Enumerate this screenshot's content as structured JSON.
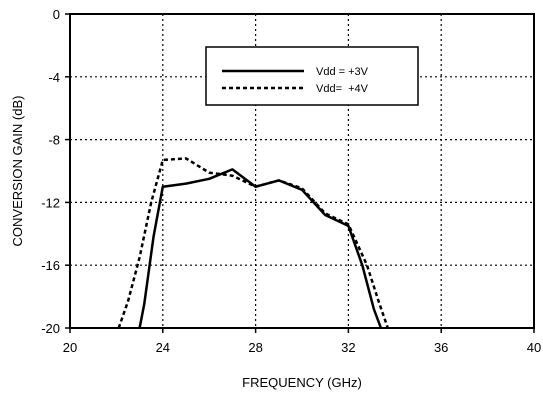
{
  "chart_data": {
    "type": "line",
    "xlabel": "FREQUENCY (GHz)",
    "ylabel": "CONVERSION GAIN (dB)",
    "xlim": [
      20,
      40
    ],
    "ylim": [
      -20,
      0
    ],
    "xticks": [
      20,
      24,
      28,
      32,
      36,
      40
    ],
    "yticks": [
      0,
      -4,
      -8,
      -12,
      -16,
      -20
    ],
    "xtick_labels": [
      "20",
      "24",
      "28",
      "32",
      "36",
      "40"
    ],
    "ytick_labels": [
      "0",
      "-4",
      "-8",
      "-12",
      "-16",
      "-20"
    ],
    "grid": "dotted",
    "legend_position": "top-right",
    "series": [
      {
        "name": "Vdd = +3V",
        "style": "solid",
        "x": [
          23.0,
          23.2,
          23.6,
          24.0,
          25.0,
          26.0,
          27.0,
          28.0,
          29.0,
          30.0,
          31.0,
          32.0,
          32.6,
          33.1,
          33.4
        ],
        "y": [
          -20.0,
          -18.5,
          -14.2,
          -11.0,
          -10.8,
          -10.5,
          -9.9,
          -11.0,
          -10.6,
          -11.2,
          -12.8,
          -13.5,
          -16.0,
          -18.8,
          -20.0
        ]
      },
      {
        "name": "Vdd=  +4V",
        "style": "dashed",
        "x": [
          22.1,
          22.5,
          23.0,
          23.5,
          24.0,
          25.0,
          26.0,
          27.0,
          28.0,
          29.0,
          30.0,
          31.0,
          32.0,
          32.8,
          33.3,
          33.7
        ],
        "y": [
          -20.0,
          -18.3,
          -15.5,
          -12.0,
          -9.3,
          -9.2,
          -10.1,
          -10.3,
          -11.0,
          -10.6,
          -11.1,
          -12.7,
          -13.4,
          -16.0,
          -18.3,
          -20.0
        ]
      }
    ]
  }
}
